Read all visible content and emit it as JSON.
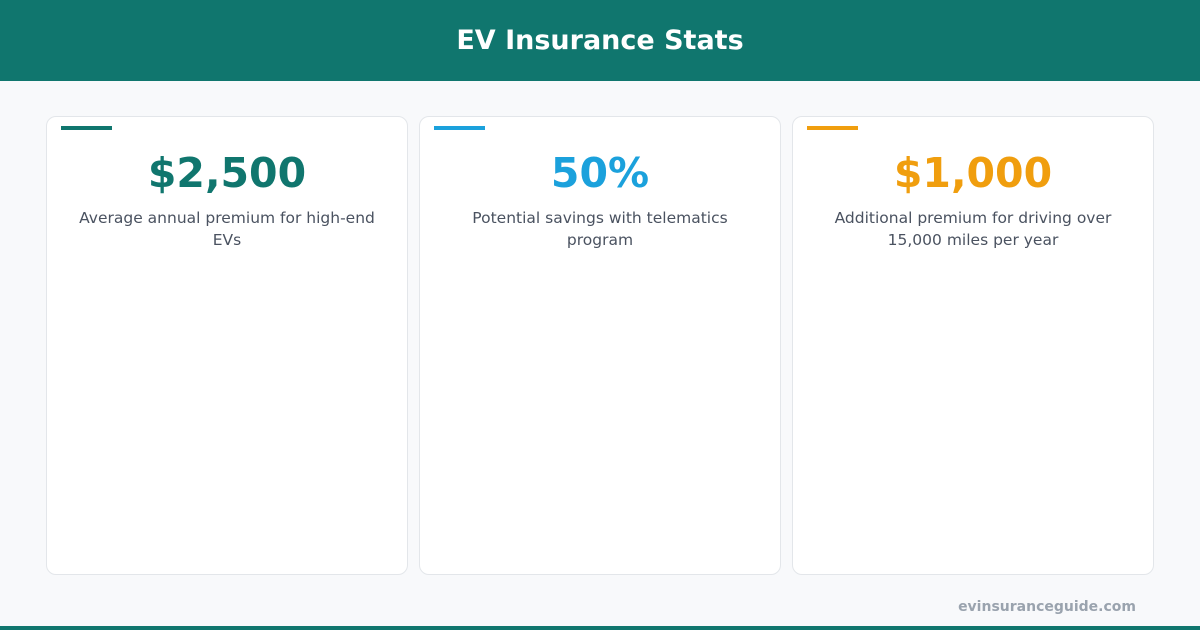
{
  "header": {
    "title": "EV Insurance Stats"
  },
  "cards": [
    {
      "value": "$2,500",
      "description": "Average annual premium for high-end EVs",
      "color": "#10766e"
    },
    {
      "value": "50%",
      "description": "Potential savings with telematics program",
      "color": "#1ba1dc"
    },
    {
      "value": "$1,000",
      "description": "Additional premium for driving over 15,000 miles per year",
      "color": "#f09e0e"
    }
  ],
  "footer": {
    "text": "evinsuranceguide.com"
  }
}
